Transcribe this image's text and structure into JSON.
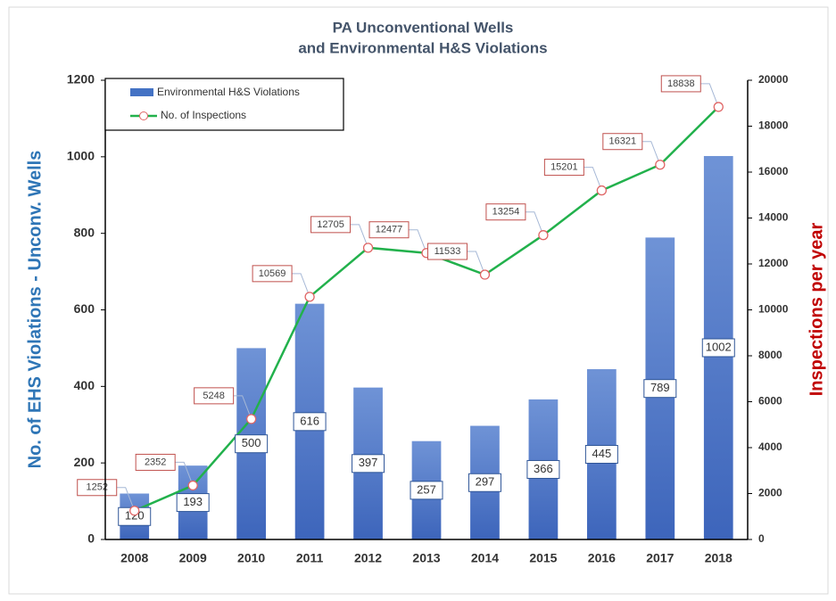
{
  "chart_data": {
    "type": "bar_line",
    "title": [
      "PA Unconventional Wells",
      "and Environmental H&S Violations"
    ],
    "y_label": "No. of EHS Violations - Unconv.  Wells",
    "y2_label": "Inspections per year",
    "categories": [
      "2008",
      "2009",
      "2010",
      "2011",
      "2012",
      "2013",
      "2014",
      "2015",
      "2016",
      "2017",
      "2018"
    ],
    "series": [
      {
        "name": "Environmental H&S Violations",
        "type": "bar",
        "color": "#4472c4",
        "values": [
          120,
          193,
          500,
          616,
          397,
          257,
          297,
          366,
          445,
          789,
          1002
        ]
      },
      {
        "name": "No. of Inspections",
        "type": "line",
        "color": "#22b14c",
        "axis": "y2",
        "values": [
          1252,
          2352,
          5248,
          10569,
          12705,
          12477,
          11533,
          13254,
          15201,
          16321,
          18838
        ]
      }
    ],
    "ylim": [
      0,
      1200
    ],
    "yticks": [
      0,
      200,
      400,
      600,
      800,
      1000,
      1200
    ],
    "y2lim": [
      0,
      20000
    ],
    "y2ticks": [
      0,
      2000,
      4000,
      6000,
      8000,
      10000,
      12000,
      14000,
      16000,
      18000,
      20000
    ],
    "legend": "upper left"
  }
}
